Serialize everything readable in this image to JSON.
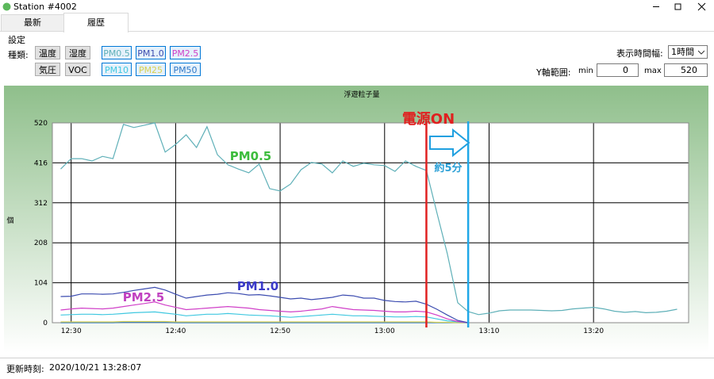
{
  "window": {
    "title": "Station #4002",
    "tabs": [
      "最新",
      "履歴"
    ],
    "group": "設定",
    "kind_label": "種類:",
    "buttons_row1": [
      "温度",
      "湿度"
    ],
    "buttons_row2": [
      "気圧",
      "VOC"
    ],
    "span_label": "表示時間幅:",
    "span_value": "1時間",
    "yrange_label": "Y軸範囲:",
    "min_label": "min",
    "max_label": "max",
    "footer_label": "更新時刻:",
    "footer_value": "2020/10/21 13:28:07"
  },
  "chart_data": {
    "type": "line",
    "title": "浮遊粒子量",
    "y_label": "個",
    "x": [
      749,
      750,
      751,
      752,
      753,
      754,
      755,
      756,
      757,
      758,
      759,
      760,
      761,
      762,
      763,
      764,
      765,
      766,
      767,
      768,
      769,
      770,
      771,
      772,
      773,
      774,
      775,
      776,
      777,
      778,
      779,
      780,
      781,
      782,
      783,
      784,
      785,
      786,
      787,
      788,
      789,
      790,
      791,
      792,
      793,
      794,
      795,
      796,
      797,
      798,
      799,
      800,
      801,
      802,
      803,
      804,
      805,
      806,
      807,
      808
    ],
    "xlim": [
      748.2,
      809.1
    ],
    "xticks": [
      {
        "value": 750,
        "label": "12:30"
      },
      {
        "value": 760,
        "label": "12:40"
      },
      {
        "value": 770,
        "label": "12:50"
      },
      {
        "value": 780,
        "label": "13:00"
      },
      {
        "value": 790,
        "label": "13:10"
      },
      {
        "value": 800,
        "label": "13:20"
      }
    ],
    "ylim": [
      0,
      520
    ],
    "yticks": [
      0,
      104,
      208,
      312,
      416,
      520
    ],
    "grid": true,
    "series": [
      {
        "name": "PM0.5",
        "color": "#5fb0b8",
        "values": [
          400,
          427,
          427,
          421,
          433,
          427,
          516,
          508,
          514,
          520,
          444,
          464,
          489,
          456,
          510,
          437,
          411,
          400,
          390,
          413,
          349,
          343,
          361,
          398,
          417,
          413,
          390,
          421,
          407,
          415,
          411,
          409,
          394,
          421,
          407,
          396,
          287,
          180,
          52,
          29,
          21,
          25,
          31,
          33,
          33,
          33,
          32,
          31,
          32,
          36,
          38,
          40,
          36,
          30,
          27,
          29,
          26,
          27,
          30,
          35
        ]
      },
      {
        "name": "PM1.0",
        "color": "#3c4cb0",
        "values": [
          68,
          69,
          75,
          75,
          74,
          75,
          79,
          84,
          88,
          92,
          85,
          74,
          64,
          68,
          72,
          74,
          78,
          76,
          72,
          73,
          70,
          66,
          62,
          64,
          60,
          63,
          66,
          72,
          70,
          64,
          64,
          58,
          55,
          54,
          56,
          48,
          35,
          20,
          6,
          0,
          null,
          null,
          null,
          null,
          null,
          null,
          null,
          null,
          null,
          null,
          null,
          null,
          null,
          null,
          null,
          null,
          null,
          null,
          null,
          null
        ]
      },
      {
        "name": "PM2.5",
        "color": "#d040c8",
        "values": [
          33,
          36,
          38,
          37,
          36,
          38,
          42,
          46,
          50,
          54,
          46,
          40,
          34,
          36,
          38,
          40,
          42,
          40,
          38,
          34,
          32,
          30,
          28,
          30,
          33,
          36,
          42,
          38,
          34,
          33,
          32,
          30,
          28,
          28,
          30,
          28,
          20,
          10,
          3,
          0,
          null,
          null,
          null,
          null,
          null,
          null,
          null,
          null,
          null,
          null,
          null,
          null,
          null,
          null,
          null,
          null,
          null,
          null,
          null,
          null
        ]
      },
      {
        "name": "PM10",
        "color": "#40c8e0",
        "values": [
          20,
          21,
          22,
          22,
          21,
          22,
          24,
          26,
          27,
          28,
          25,
          22,
          18,
          20,
          22,
          22,
          24,
          22,
          20,
          19,
          18,
          16,
          14,
          16,
          18,
          20,
          22,
          20,
          18,
          18,
          17,
          16,
          15,
          15,
          16,
          15,
          10,
          5,
          2,
          0,
          null,
          null,
          null,
          null,
          null,
          null,
          null,
          null,
          null,
          null,
          null,
          null,
          null,
          null,
          null,
          null,
          null,
          null,
          null,
          null
        ]
      },
      {
        "name": "PM25",
        "color": "#d8d050",
        "values": [
          2,
          2,
          2,
          2,
          2,
          2,
          3,
          3,
          3,
          3,
          3,
          2,
          2,
          2,
          2,
          2,
          2,
          2,
          2,
          2,
          2,
          2,
          2,
          2,
          2,
          2,
          2,
          2,
          2,
          2,
          2,
          2,
          2,
          2,
          2,
          2,
          1,
          1,
          0,
          0,
          null,
          null,
          null,
          null,
          null,
          null,
          null,
          null,
          null,
          null,
          null,
          null,
          null,
          null,
          null,
          null,
          null,
          null,
          null,
          null
        ]
      },
      {
        "name": "PM50",
        "color": "#2f78c8",
        "values": [
          0,
          0,
          0,
          0,
          0,
          0,
          1,
          1,
          1,
          1,
          1,
          0,
          0,
          0,
          0,
          0,
          0,
          0,
          0,
          0,
          0,
          0,
          0,
          0,
          0,
          0,
          0,
          0,
          0,
          0,
          0,
          0,
          0,
          0,
          0,
          0,
          0,
          0,
          0,
          0,
          null,
          null,
          null,
          null,
          null,
          null,
          null,
          null,
          null,
          null,
          null,
          null,
          null,
          null,
          null,
          null,
          null,
          null,
          null,
          null
        ]
      }
    ],
    "markers": [
      {
        "x": 784,
        "color": "#e02020"
      },
      {
        "x": 788,
        "color": "#20a8e8"
      }
    ],
    "annotations": [
      {
        "text": "電源ON",
        "color": "#e02020"
      },
      {
        "text": "約5分",
        "color": "#2a9fd6"
      },
      {
        "text": "PM0.5",
        "color": "#3cbc3c"
      },
      {
        "text": "PM1.0",
        "color": "#3a3ac8"
      },
      {
        "text": "PM2.5",
        "color": "#c040c0"
      }
    ]
  }
}
